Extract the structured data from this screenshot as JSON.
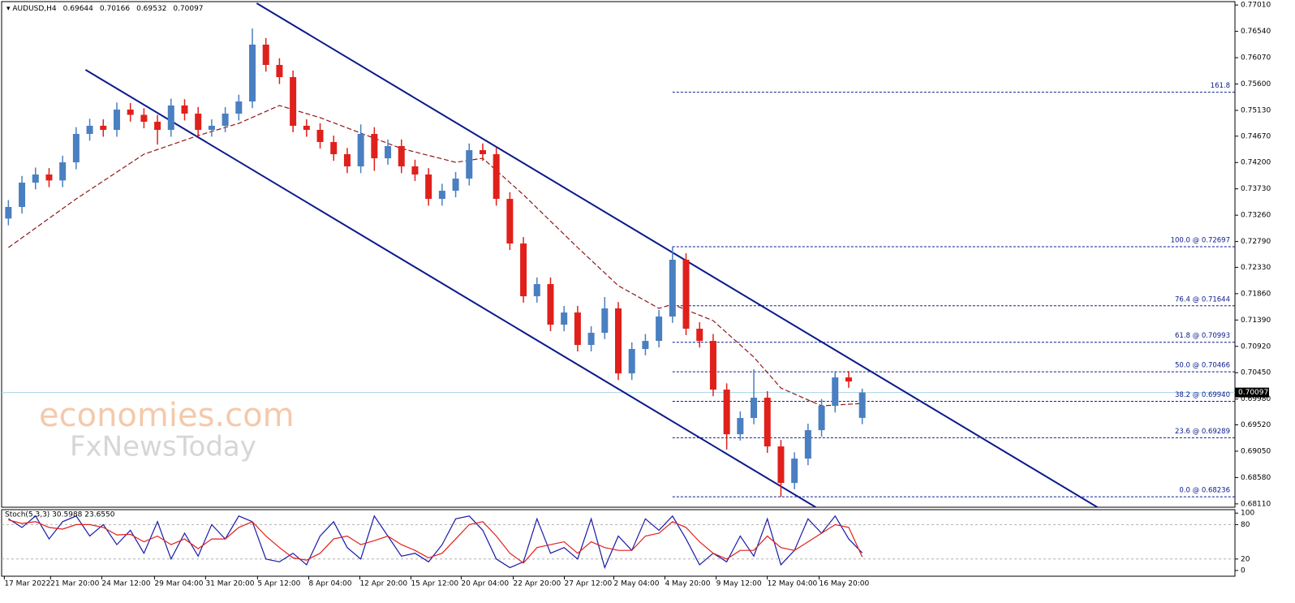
{
  "chart_data": [
    {
      "type": "candlestick",
      "title": "AUDUSD,H4",
      "up_color": "#4a7fc1",
      "down_color": "#e0201b",
      "open": [
        0.732,
        0.73407,
        0.73841,
        0.73986,
        0.7388,
        0.74203,
        0.7471,
        0.74855,
        0.74782,
        0.75144,
        0.7505,
        0.74927,
        0.74782,
        0.75217,
        0.75072,
        0.74782,
        0.74855,
        0.75072,
        0.75289,
        0.76303,
        0.75941,
        0.75723,
        0.74855,
        0.74782,
        0.74565,
        0.74348,
        0.74131,
        0.7471,
        0.74275,
        0.74493,
        0.74131,
        0.73986,
        0.73551,
        0.73696,
        0.73913,
        0.7442,
        0.74348,
        0.73551,
        0.72755,
        0.71814,
        0.72031,
        0.71307,
        0.71524,
        0.70945,
        0.71162,
        0.71597,
        0.70438,
        0.70873,
        0.71017,
        0.71452,
        0.72465,
        0.71235,
        0.71017,
        0.70149,
        0.69352,
        0.69642,
        0.70004,
        0.69135,
        0.68483,
        0.68918,
        0.69425,
        0.69859,
        0.70366,
        0.69644
      ],
      "high": [
        0.7353,
        0.7396,
        0.7411,
        0.741,
        0.7432,
        0.7483,
        0.7498,
        0.7497,
        0.7527,
        0.7526,
        0.7517,
        0.7505,
        0.7534,
        0.7533,
        0.7519,
        0.7497,
        0.7519,
        0.7541,
        0.7659,
        0.7642,
        0.7606,
        0.7584,
        0.7497,
        0.749,
        0.7468,
        0.7446,
        0.7488,
        0.7483,
        0.7461,
        0.7461,
        0.7425,
        0.741,
        0.7382,
        0.7403,
        0.7454,
        0.7454,
        0.7446,
        0.7367,
        0.7287,
        0.7215,
        0.7215,
        0.7164,
        0.7164,
        0.7128,
        0.718,
        0.7171,
        0.7099,
        0.7114,
        0.7157,
        0.72697,
        0.7258,
        0.7135,
        0.7114,
        0.7026,
        0.6976,
        0.7051,
        0.7012,
        0.6925,
        0.6903,
        0.6954,
        0.6998,
        0.7048,
        0.7048,
        0.70166
      ],
      "low": [
        0.7308,
        0.7329,
        0.7372,
        0.7376,
        0.7376,
        0.7408,
        0.7459,
        0.7466,
        0.7466,
        0.7493,
        0.7481,
        0.7452,
        0.7466,
        0.7495,
        0.7466,
        0.7466,
        0.7474,
        0.7495,
        0.7517,
        0.7582,
        0.756,
        0.7474,
        0.7466,
        0.7445,
        0.7423,
        0.7401,
        0.7401,
        0.7405,
        0.7416,
        0.7401,
        0.7387,
        0.7343,
        0.7343,
        0.7358,
        0.7379,
        0.7423,
        0.7343,
        0.7264,
        0.717,
        0.717,
        0.7119,
        0.7119,
        0.7083,
        0.7083,
        0.7105,
        0.7032,
        0.7032,
        0.7076,
        0.709,
        0.7134,
        0.7112,
        0.709,
        0.7003,
        0.6908,
        0.6924,
        0.6953,
        0.6902,
        0.68236,
        0.6837,
        0.688,
        0.6931,
        0.6974,
        0.7018,
        0.69532
      ],
      "close": [
        0.73407,
        0.73841,
        0.73986,
        0.7388,
        0.74203,
        0.7471,
        0.74855,
        0.74782,
        0.75144,
        0.7505,
        0.74927,
        0.74782,
        0.75217,
        0.75072,
        0.74782,
        0.74855,
        0.75072,
        0.75289,
        0.76303,
        0.75941,
        0.75723,
        0.74855,
        0.74782,
        0.74565,
        0.74348,
        0.74131,
        0.7471,
        0.74275,
        0.74493,
        0.74131,
        0.73986,
        0.73551,
        0.73696,
        0.73913,
        0.7442,
        0.74348,
        0.73551,
        0.72755,
        0.71814,
        0.72031,
        0.71307,
        0.71524,
        0.70945,
        0.71162,
        0.71597,
        0.70438,
        0.70873,
        0.71017,
        0.71452,
        0.72465,
        0.71235,
        0.71017,
        0.70149,
        0.69352,
        0.69642,
        0.70004,
        0.69135,
        0.68483,
        0.68918,
        0.69425,
        0.69859,
        0.70366,
        0.70293,
        0.70097
      ],
      "ma": {
        "color": "#8b1a1a",
        "x": [
          0,
          5,
          10,
          14,
          17,
          20,
          23,
          29,
          33,
          35,
          38,
          42,
          45,
          48,
          49,
          52,
          55,
          57,
          60,
          63
        ],
        "values": [
          0.72683,
          0.73551,
          0.74348,
          0.74681,
          0.74898,
          0.75217,
          0.74999,
          0.74449,
          0.74203,
          0.74275,
          0.73624,
          0.72683,
          0.72002,
          0.71597,
          0.71669,
          0.71379,
          0.70728,
          0.70177,
          0.69859,
          0.69902
        ]
      },
      "channel_lines": [
        {
          "color": "#0a1a8c",
          "x": [
            18.32,
            80.36
          ],
          "values": [
            0.77041,
            0.68049
          ]
        },
        {
          "color": "#0a1a8c",
          "x": [
            5.69,
            59.58
          ],
          "values": [
            0.75854,
            0.68049
          ]
        }
      ],
      "fibonacci": {
        "color": "#0a1a8c",
        "x_start": 49,
        "levels": [
          {
            "value": 0.75454,
            "label": "161.8"
          },
          {
            "value": 0.72697,
            "label": "100.0 @ 0.72697"
          },
          {
            "value": 0.71644,
            "label": "76.4 @ 0.71644"
          },
          {
            "value": 0.70993,
            "label": "61.8 @ 0.70993"
          },
          {
            "value": 0.70466,
            "label": "50.0 @ 0.70466"
          },
          {
            "value": 0.6994,
            "label": "38.2 @ 0.69940"
          },
          {
            "value": 0.69289,
            "label": "23.6 @ 0.69289"
          },
          {
            "value": 0.68236,
            "label": "0.0 @ 0.68236"
          }
        ]
      },
      "last_price": {
        "value": 0.70097,
        "label": "0.70097"
      },
      "watermark": [
        "economies.com",
        "FxNewsToday"
      ],
      "xlim": [
        -0.5,
        90.5
      ],
      "ylim": [
        0.6805,
        0.7707
      ],
      "yticks": [
        {
          "value": 0.7701,
          "label": "0.77010"
        },
        {
          "value": 0.7654,
          "label": "0.76540"
        },
        {
          "value": 0.7607,
          "label": "0.76070"
        },
        {
          "value": 0.756,
          "label": "0.75600"
        },
        {
          "value": 0.7513,
          "label": "0.75130"
        },
        {
          "value": 0.7467,
          "label": "0.74670"
        },
        {
          "value": 0.742,
          "label": "0.74200"
        },
        {
          "value": 0.7373,
          "label": "0.73730"
        },
        {
          "value": 0.7326,
          "label": "0.73260"
        },
        {
          "value": 0.7279,
          "label": "0.72790"
        },
        {
          "value": 0.7233,
          "label": "0.72330"
        },
        {
          "value": 0.7186,
          "label": "0.71860"
        },
        {
          "value": 0.7139,
          "label": "0.71390"
        },
        {
          "value": 0.7092,
          "label": "0.70920"
        },
        {
          "value": 0.7045,
          "label": "0.70450"
        },
        {
          "value": 0.6998,
          "label": "0.69980"
        },
        {
          "value": 0.6952,
          "label": "0.69520"
        },
        {
          "value": 0.6905,
          "label": "0.69050"
        },
        {
          "value": 0.6858,
          "label": "0.68580"
        },
        {
          "value": 0.6811,
          "label": "0.68110"
        }
      ]
    },
    {
      "type": "line",
      "title": "Stoch(5,3,3) 30.5988 23.6550",
      "series": [
        {
          "color": "#1a1aa8",
          "values": [
            90,
            75,
            95,
            55,
            85,
            95,
            60,
            80,
            45,
            70,
            30,
            85,
            20,
            65,
            25,
            80,
            55,
            95,
            85,
            20,
            15,
            30,
            10,
            60,
            85,
            40,
            20,
            95,
            60,
            25,
            30,
            15,
            45,
            90,
            95,
            70,
            20,
            5,
            15,
            90,
            30,
            40,
            20,
            90,
            5,
            60,
            35,
            90,
            70,
            95,
            55,
            10,
            30,
            15,
            60,
            25,
            90,
            10,
            35,
            90,
            65,
            95,
            55,
            30.5988
          ]
        },
        {
          "color": "#e0201b",
          "values": [
            88,
            82,
            85,
            75,
            72,
            80,
            80,
            75,
            62,
            63,
            50,
            60,
            45,
            55,
            38,
            55,
            55,
            75,
            85,
            60,
            40,
            22,
            18,
            30,
            55,
            60,
            45,
            52,
            60,
            45,
            35,
            22,
            30,
            55,
            80,
            85,
            60,
            30,
            13,
            40,
            45,
            50,
            30,
            50,
            40,
            35,
            35,
            60,
            65,
            85,
            75,
            50,
            30,
            20,
            35,
            35,
            60,
            40,
            35,
            50,
            65,
            80,
            75,
            23.655
          ]
        }
      ],
      "levels": [
        20,
        80
      ],
      "xlim": [
        -0.5,
        90.5
      ],
      "ylim": [
        -10,
        106
      ],
      "yticks": [
        0,
        20,
        80,
        100
      ],
      "xticks": [
        {
          "value": -0.3,
          "label": "17 Mar 2022"
        },
        {
          "value": 3.11,
          "label": "21 Mar 20:00"
        },
        {
          "value": 6.89,
          "label": "24 Mar 12:00"
        },
        {
          "value": 10.78,
          "label": "29 Mar 04:00"
        },
        {
          "value": 14.55,
          "label": "31 Mar 20:00"
        },
        {
          "value": 18.38,
          "label": "5 Apr 12:00"
        },
        {
          "value": 22.16,
          "label": "8 Apr 04:00"
        },
        {
          "value": 25.93,
          "label": "12 Apr 20:00"
        },
        {
          "value": 29.7,
          "label": "15 Apr 12:00"
        },
        {
          "value": 33.41,
          "label": "20 Apr 04:00"
        },
        {
          "value": 37.25,
          "label": "22 Apr 20:00"
        },
        {
          "value": 41.02,
          "label": "27 Apr 12:00"
        },
        {
          "value": 44.67,
          "label": "2 May 04:00"
        },
        {
          "value": 48.44,
          "label": "4 May 20:00"
        },
        {
          "value": 52.22,
          "label": "9 May 12:00"
        },
        {
          "value": 55.99,
          "label": "12 May 04:00"
        },
        {
          "value": 59.82,
          "label": "16 May 20:00"
        }
      ]
    }
  ]
}
